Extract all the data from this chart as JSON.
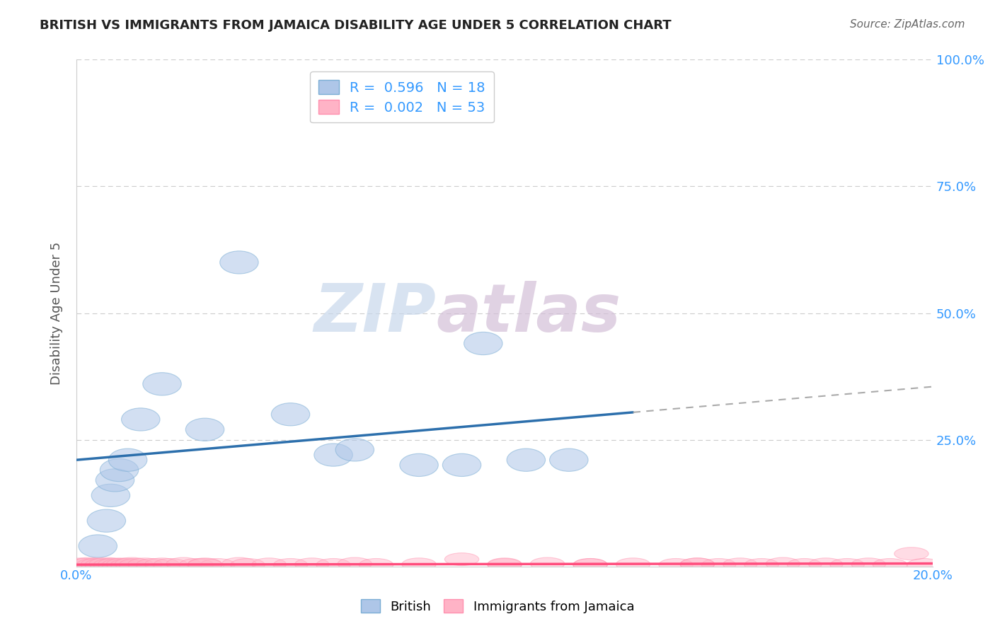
{
  "title": "BRITISH VS IMMIGRANTS FROM JAMAICA DISABILITY AGE UNDER 5 CORRELATION CHART",
  "source": "Source: ZipAtlas.com",
  "ylabel": "Disability Age Under 5",
  "xlim": [
    0.0,
    0.2
  ],
  "ylim": [
    0.0,
    1.0
  ],
  "british_R": 0.596,
  "british_N": 18,
  "jamaica_R": 0.002,
  "jamaica_N": 53,
  "british_color": "#AEC6E8",
  "british_edge_color": "#7AADD4",
  "jamaica_color": "#FFB3C6",
  "jamaica_edge_color": "#FF8FAE",
  "british_line_color": "#2C6FAC",
  "british_line_ext_color": "#AAAAAA",
  "jamaica_line_color": "#FF4D7D",
  "british_scatter_x": [
    0.005,
    0.007,
    0.008,
    0.009,
    0.01,
    0.012,
    0.015,
    0.02,
    0.03,
    0.038,
    0.05,
    0.06,
    0.065,
    0.08,
    0.09,
    0.095,
    0.105,
    0.115
  ],
  "british_scatter_y": [
    0.04,
    0.09,
    0.14,
    0.17,
    0.19,
    0.21,
    0.29,
    0.36,
    0.27,
    0.6,
    0.3,
    0.22,
    0.23,
    0.2,
    0.2,
    0.44,
    0.21,
    0.21
  ],
  "jamaica_scatter_x": [
    0.001,
    0.002,
    0.003,
    0.004,
    0.005,
    0.006,
    0.007,
    0.008,
    0.009,
    0.01,
    0.011,
    0.012,
    0.013,
    0.014,
    0.016,
    0.018,
    0.02,
    0.022,
    0.025,
    0.028,
    0.03,
    0.033,
    0.038,
    0.04,
    0.045,
    0.05,
    0.055,
    0.06,
    0.065,
    0.08,
    0.09,
    0.1,
    0.11,
    0.12,
    0.13,
    0.14,
    0.145,
    0.15,
    0.155,
    0.16,
    0.165,
    0.17,
    0.175,
    0.18,
    0.185,
    0.19,
    0.195,
    0.198,
    0.145,
    0.12,
    0.1,
    0.07,
    0.03
  ],
  "jamaica_scatter_y": [
    0.004,
    0.003,
    0.005,
    0.003,
    0.004,
    0.003,
    0.005,
    0.003,
    0.004,
    0.003,
    0.004,
    0.003,
    0.005,
    0.003,
    0.004,
    0.003,
    0.004,
    0.003,
    0.005,
    0.003,
    0.004,
    0.003,
    0.005,
    0.003,
    0.004,
    0.003,
    0.004,
    0.003,
    0.005,
    0.004,
    0.014,
    0.003,
    0.005,
    0.003,
    0.004,
    0.003,
    0.004,
    0.003,
    0.004,
    0.003,
    0.005,
    0.003,
    0.004,
    0.003,
    0.004,
    0.003,
    0.025,
    0.003,
    0.004,
    0.003,
    0.004,
    0.003,
    0.003
  ],
  "watermark_zip": "ZIP",
  "watermark_atlas": "atlas",
  "background_color": "#FFFFFF",
  "grid_color": "#CCCCCC",
  "tick_color": "#3399FF",
  "title_color": "#222222",
  "source_color": "#666666"
}
